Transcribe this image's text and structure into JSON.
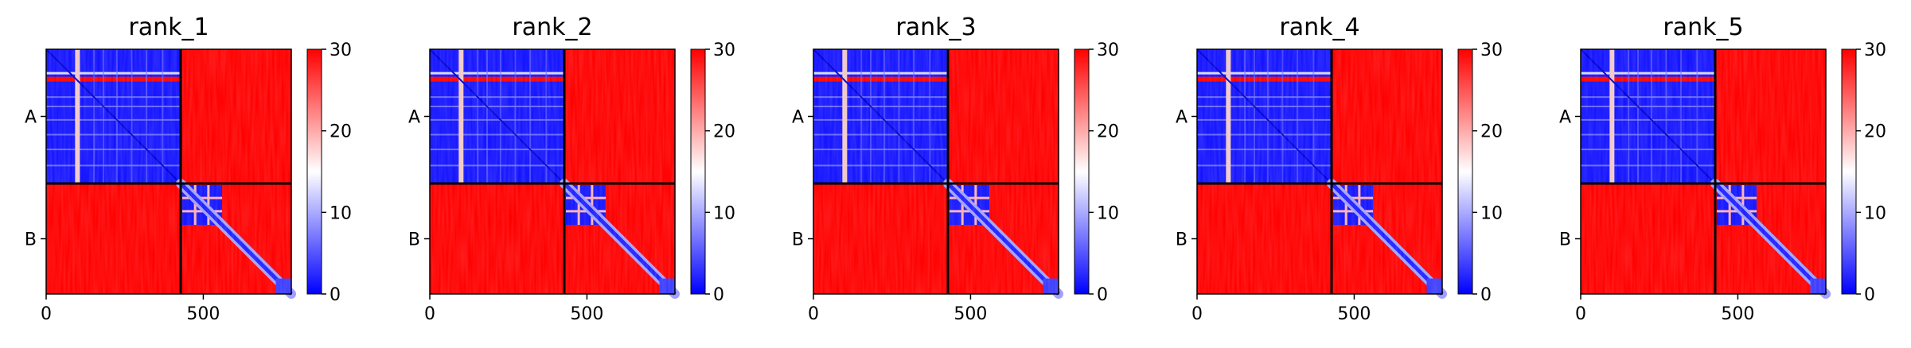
{
  "chart_data": [
    {
      "type": "heatmap",
      "title": "rank_1",
      "x_ticks": [
        0,
        500
      ],
      "y_tick_labels": [
        "A",
        "B"
      ],
      "chains": [
        {
          "name": "A",
          "length": 428
        },
        {
          "name": "B",
          "length": 352
        }
      ],
      "total_length": 780,
      "colorbar": {
        "min": 0,
        "max": 30,
        "ticks": [
          0,
          10,
          20,
          30
        ],
        "colors": [
          "#0000ff",
          "#ffffff",
          "#ff0000"
        ]
      }
    },
    {
      "type": "heatmap",
      "title": "rank_2",
      "x_ticks": [
        0,
        500
      ],
      "y_tick_labels": [
        "A",
        "B"
      ],
      "chains": [
        {
          "name": "A",
          "length": 428
        },
        {
          "name": "B",
          "length": 352
        }
      ],
      "total_length": 780,
      "colorbar": {
        "min": 0,
        "max": 30,
        "ticks": [
          0,
          10,
          20,
          30
        ],
        "colors": [
          "#0000ff",
          "#ffffff",
          "#ff0000"
        ]
      }
    },
    {
      "type": "heatmap",
      "title": "rank_3",
      "x_ticks": [
        0,
        500
      ],
      "y_tick_labels": [
        "A",
        "B"
      ],
      "chains": [
        {
          "name": "A",
          "length": 428
        },
        {
          "name": "B",
          "length": 352
        }
      ],
      "total_length": 780,
      "colorbar": {
        "min": 0,
        "max": 30,
        "ticks": [
          0,
          10,
          20,
          30
        ],
        "colors": [
          "#0000ff",
          "#ffffff",
          "#ff0000"
        ]
      }
    },
    {
      "type": "heatmap",
      "title": "rank_4",
      "x_ticks": [
        0,
        500
      ],
      "y_tick_labels": [
        "A",
        "B"
      ],
      "chains": [
        {
          "name": "A",
          "length": 428
        },
        {
          "name": "B",
          "length": 352
        }
      ],
      "total_length": 780,
      "colorbar": {
        "min": 0,
        "max": 30,
        "ticks": [
          0,
          10,
          20,
          30
        ],
        "colors": [
          "#0000ff",
          "#ffffff",
          "#ff0000"
        ]
      }
    },
    {
      "type": "heatmap",
      "title": "rank_5",
      "x_ticks": [
        0,
        500
      ],
      "y_tick_labels": [
        "A",
        "B"
      ],
      "chains": [
        {
          "name": "A",
          "length": 428
        },
        {
          "name": "B",
          "length": 352
        }
      ],
      "total_length": 780,
      "colorbar": {
        "min": 0,
        "max": 30,
        "ticks": [
          0,
          10,
          20,
          30
        ],
        "colors": [
          "#0000ff",
          "#ffffff",
          "#ff0000"
        ]
      }
    }
  ]
}
